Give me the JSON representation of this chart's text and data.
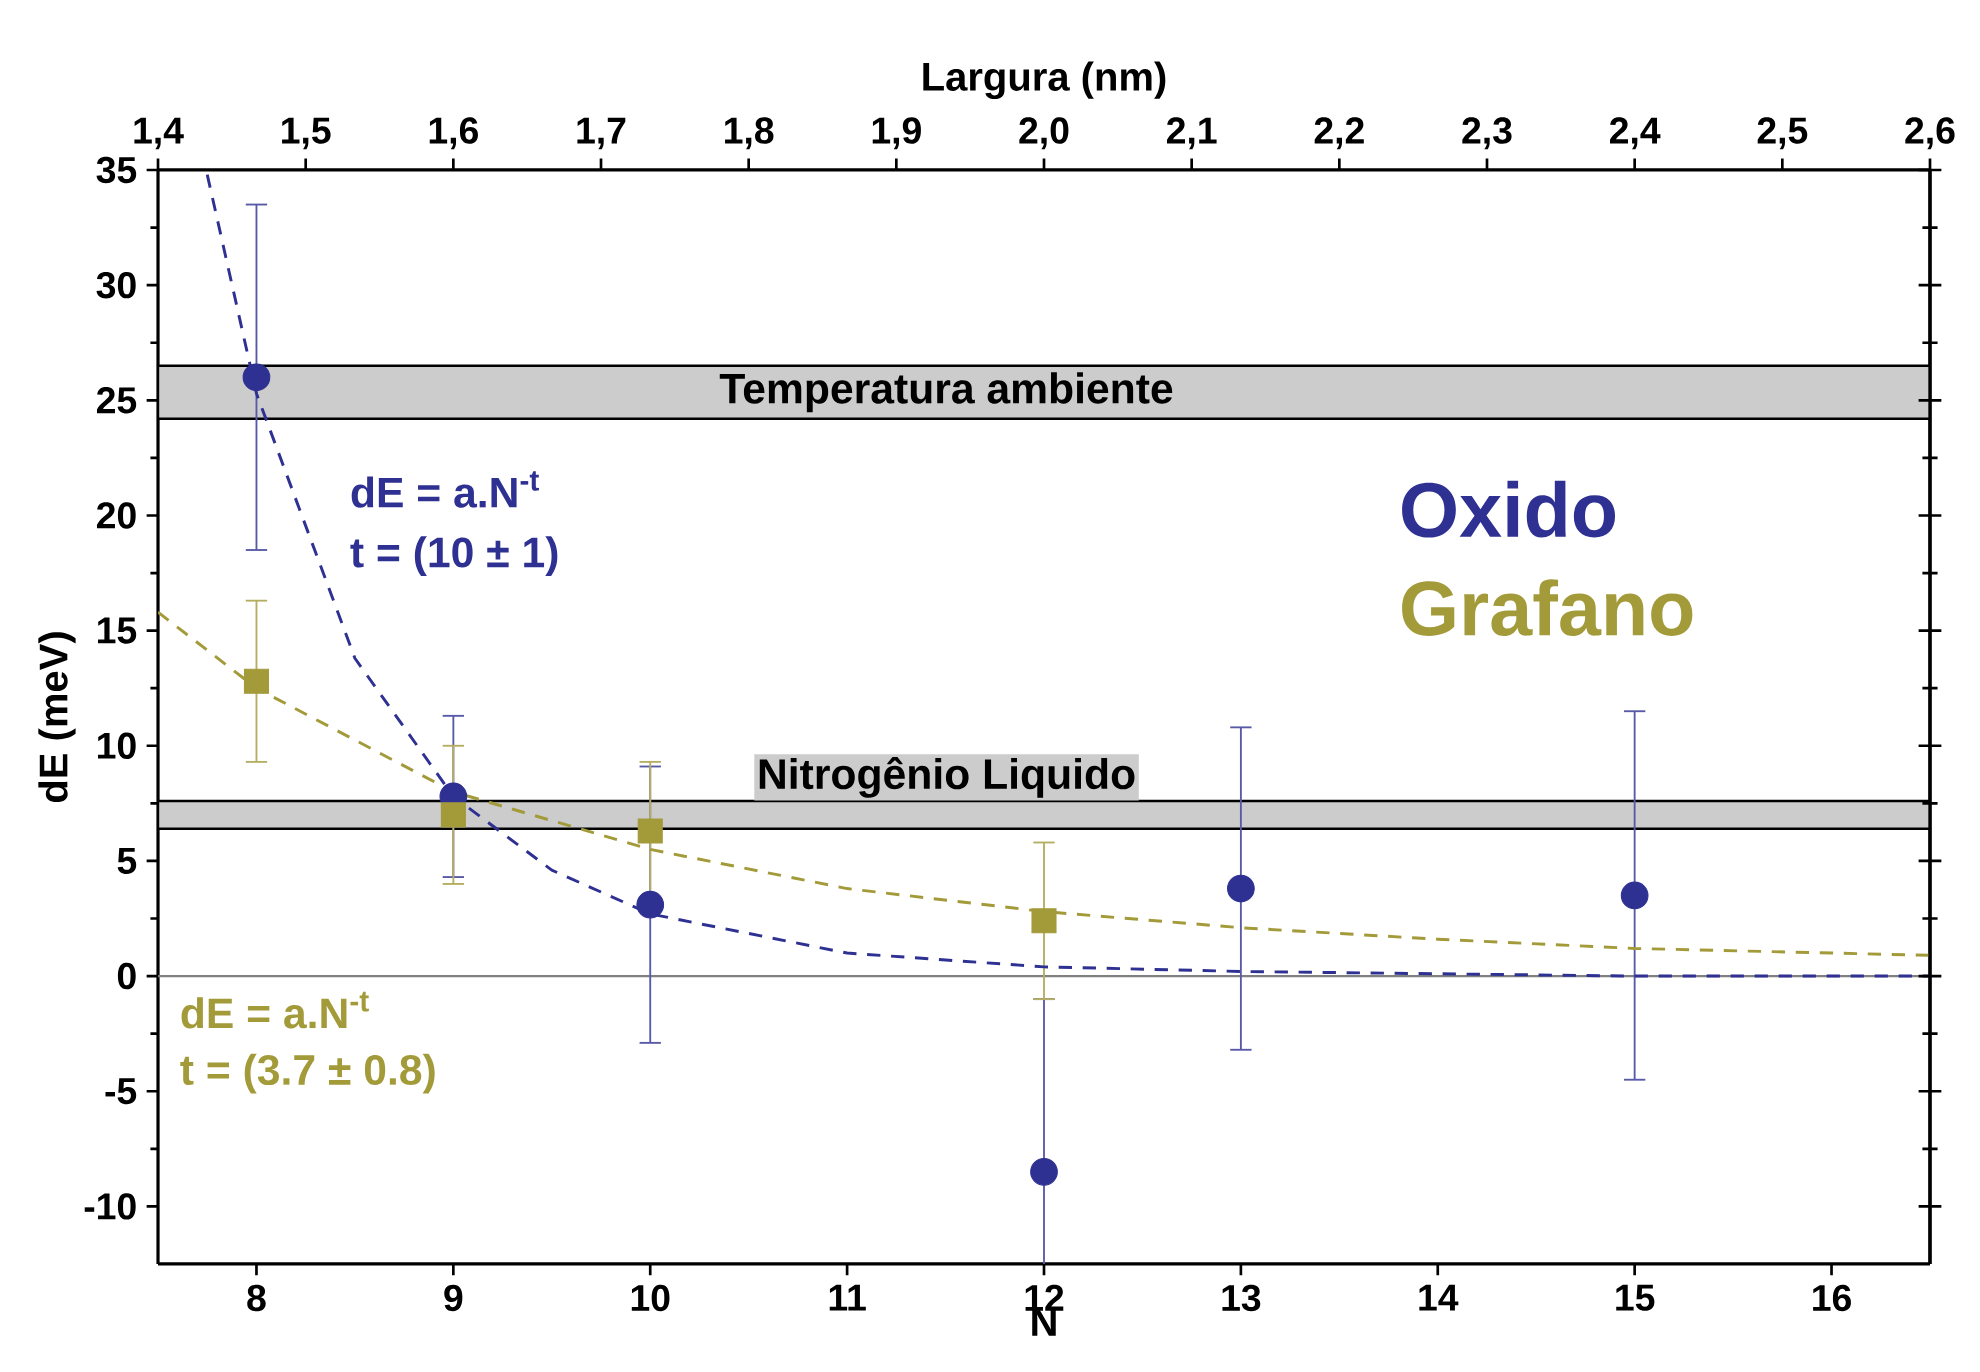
{
  "chart_data": {
    "type": "scatter",
    "xlabel": "N",
    "ylabel": "dE (meV)",
    "x2label": "Largura (nm)",
    "xlim": [
      7.5,
      16.5
    ],
    "xticks": [
      8,
      9,
      10,
      11,
      12,
      13,
      14,
      15,
      16
    ],
    "x2lim": [
      1.4,
      2.6
    ],
    "x2ticks": [
      {
        "value": 1.4,
        "label": "1,4"
      },
      {
        "value": 1.5,
        "label": "1,5"
      },
      {
        "value": 1.6,
        "label": "1,6"
      },
      {
        "value": 1.7,
        "label": "1,7"
      },
      {
        "value": 1.8,
        "label": "1,8"
      },
      {
        "value": 1.9,
        "label": "1,9"
      },
      {
        "value": 2.0,
        "label": "2,0"
      },
      {
        "value": 2.1,
        "label": "2,1"
      },
      {
        "value": 2.2,
        "label": "2,2"
      },
      {
        "value": 2.3,
        "label": "2,3"
      },
      {
        "value": 2.4,
        "label": "2,4"
      },
      {
        "value": 2.5,
        "label": "2,5"
      },
      {
        "value": 2.6,
        "label": "2,6"
      }
    ],
    "ylim": [
      -12.5,
      35
    ],
    "yticks": [
      -10,
      -5,
      0,
      5,
      10,
      15,
      20,
      25,
      30,
      35
    ],
    "legend": "right",
    "series": [
      {
        "name": "Oxido",
        "marker": "circle",
        "color": "#2e3192",
        "x": [
          8,
          9,
          10,
          12,
          13,
          15
        ],
        "values": [
          26,
          7.8,
          3.1,
          -8.5,
          3.8,
          3.5
        ],
        "errors": [
          7.5,
          3.5,
          6,
          7.5,
          7,
          8
        ]
      },
      {
        "name": "Grafano",
        "marker": "square",
        "color": "#a39a3a",
        "x": [
          8,
          9,
          10,
          12
        ],
        "values": [
          12.8,
          7.0,
          6.3,
          2.4
        ],
        "errors": [
          3.5,
          3,
          3,
          3.4
        ]
      },
      {
        "type": "line",
        "marker": "none",
        "line_style": "dashed",
        "color": "#2e3192",
        "x": [
          7.75,
          8,
          8.5,
          9,
          9.5,
          10,
          11,
          12,
          13,
          14,
          15,
          16.5
        ],
        "values": [
          34.8,
          25.3,
          13.8,
          7.8,
          4.6,
          2.7,
          1.0,
          0.4,
          0.2,
          0.1,
          0.0,
          0.0
        ]
      },
      {
        "type": "line",
        "marker": "none",
        "line_style": "dashed",
        "color": "#a39a3a",
        "x": [
          7.5,
          8,
          9,
          10,
          11,
          12,
          13,
          14,
          15,
          16.5
        ],
        "values": [
          15.8,
          12.5,
          8.0,
          5.5,
          3.8,
          2.8,
          2.1,
          1.6,
          1.2,
          0.9
        ]
      }
    ],
    "ref_lines": [
      {
        "axis": "y",
        "value": 0,
        "color": "#808080"
      }
    ],
    "bands": [
      {
        "axis": "y",
        "from": 24.2,
        "to": 26.5,
        "label": "Temperatura ambiente",
        "color": "#cccccc"
      },
      {
        "axis": "y",
        "from": 6.4,
        "to": 7.6,
        "label": "Nitrogênio Liquido",
        "color": "#cccccc"
      }
    ],
    "annotations": [
      "dE = a.N$^{-t}$",
      "t = (10 ± 1)",
      "dE = a.N$^{-t}$",
      "t = (3.7 ± 0.8)"
    ]
  }
}
